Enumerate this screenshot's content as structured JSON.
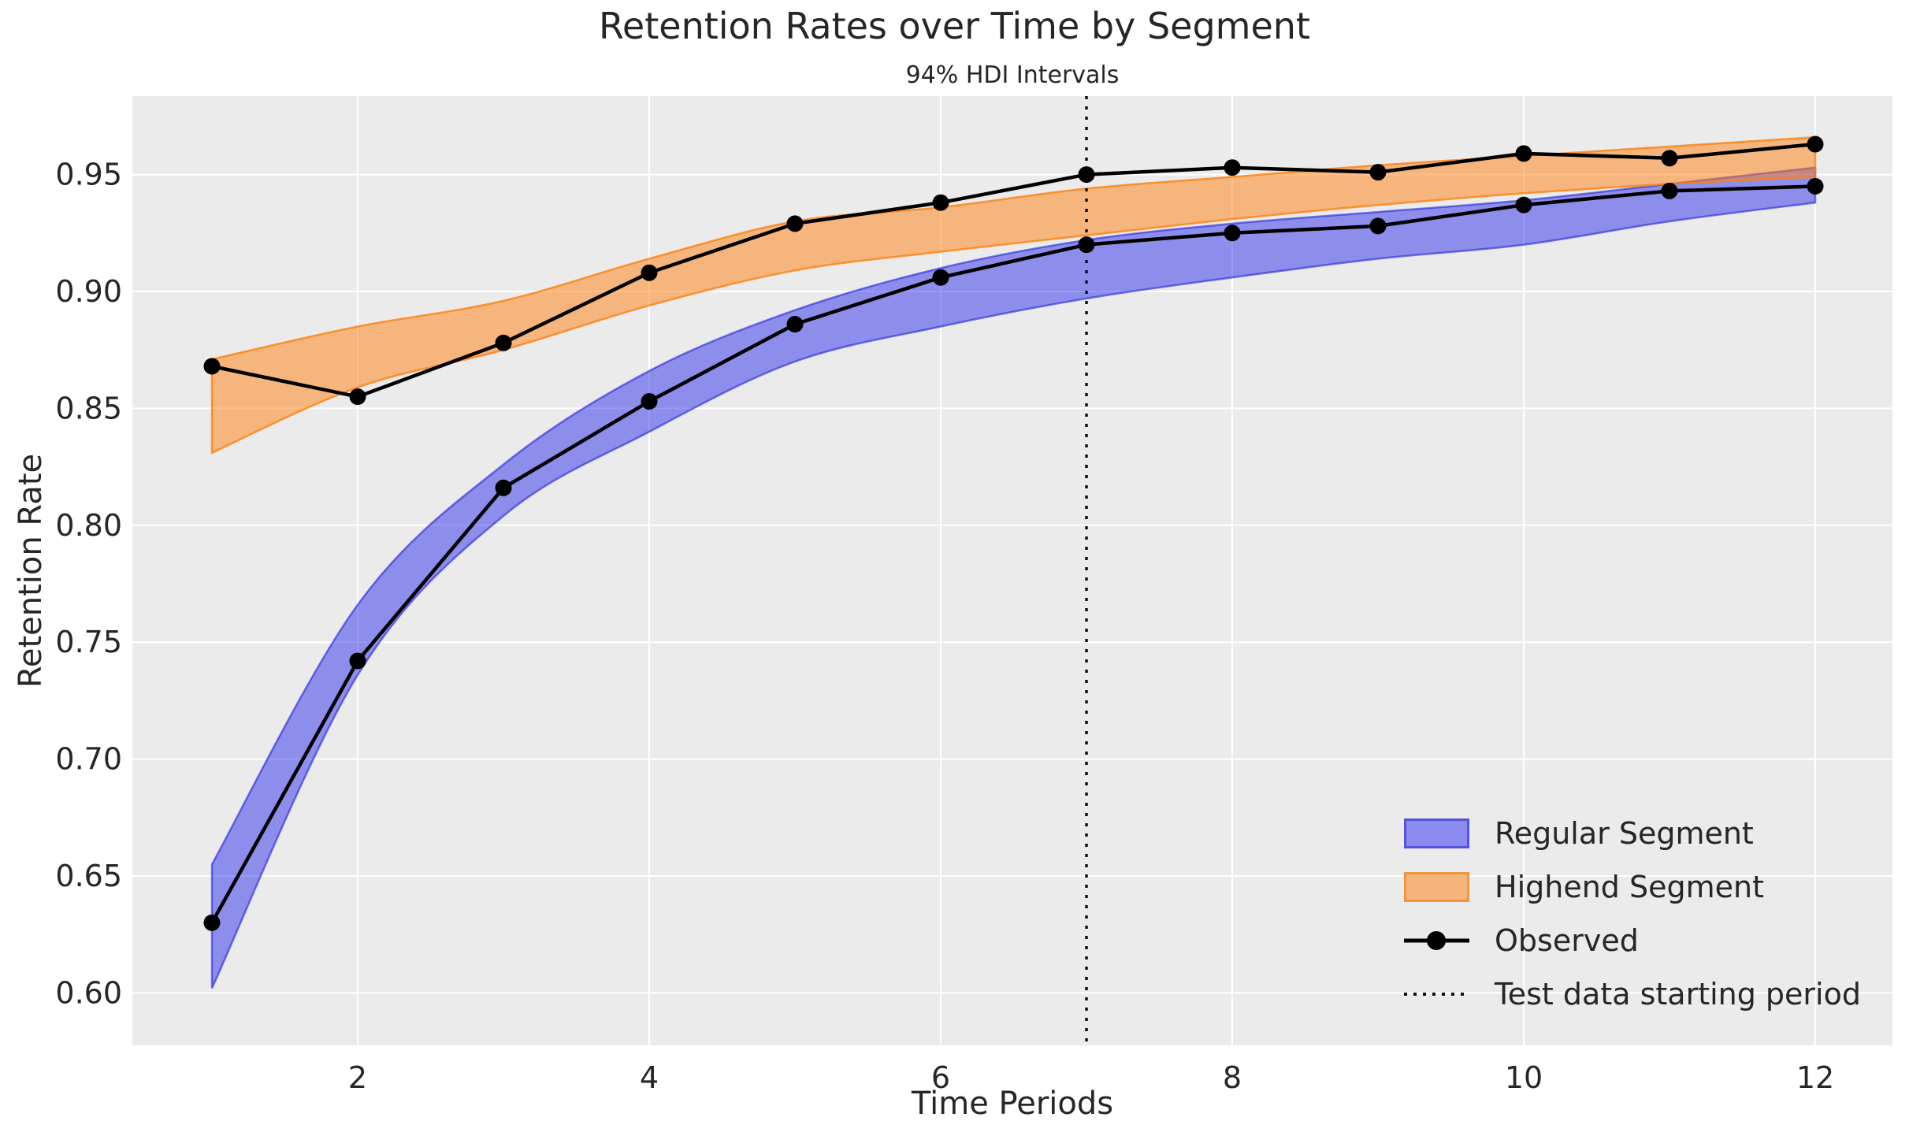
{
  "chart_data": {
    "type": "line",
    "title": "Retention Rates over Time by Segment",
    "subtitle": "94% HDI Intervals",
    "xlabel": "Time Periods",
    "ylabel": "Retention Rate",
    "grid": true,
    "legend_position": "lower right",
    "xlim": [
      0.46,
      12.54
    ],
    "ylim": [
      0.578,
      0.984
    ],
    "x": [
      1,
      2,
      3,
      4,
      5,
      6,
      7,
      8,
      9,
      10,
      11,
      12
    ],
    "x_tick_labels": [
      "2",
      "4",
      "6",
      "8",
      "10",
      "12"
    ],
    "x_tick_values": [
      2,
      4,
      6,
      8,
      10,
      12
    ],
    "y_tick_labels": [
      "0.60",
      "0.65",
      "0.70",
      "0.75",
      "0.80",
      "0.85",
      "0.90",
      "0.95"
    ],
    "y_tick_values": [
      0.6,
      0.65,
      0.7,
      0.75,
      0.8,
      0.85,
      0.9,
      0.95
    ],
    "series": [
      {
        "name": "Observed (Regular)",
        "type": "line-markers",
        "color": "#000000",
        "values": [
          0.63,
          0.742,
          0.816,
          0.853,
          0.886,
          0.906,
          0.92,
          0.925,
          0.928,
          0.937,
          0.943,
          0.945
        ]
      },
      {
        "name": "Observed (Highend)",
        "type": "line-markers",
        "color": "#000000",
        "values": [
          0.868,
          0.855,
          0.878,
          0.908,
          0.929,
          0.938,
          0.95,
          0.953,
          0.951,
          0.959,
          0.957,
          0.963
        ]
      }
    ],
    "bands": [
      {
        "name": "Regular Segment",
        "fill": "#0000ee",
        "fill_opacity": 0.4,
        "edge": "#2222dd",
        "edge_opacity": 0.6,
        "lower": [
          0.602,
          0.736,
          0.804,
          0.84,
          0.87,
          0.885,
          0.897,
          0.906,
          0.914,
          0.92,
          0.93,
          0.938
        ],
        "upper": [
          0.655,
          0.766,
          0.826,
          0.866,
          0.892,
          0.91,
          0.922,
          0.929,
          0.934,
          0.939,
          0.946,
          0.953
        ]
      },
      {
        "name": "Highend Segment",
        "fill": "#ff7f0e",
        "fill_opacity": 0.5,
        "edge": "#ff7f0e",
        "edge_opacity": 0.8,
        "lower": [
          0.831,
          0.859,
          0.875,
          0.894,
          0.909,
          0.917,
          0.924,
          0.931,
          0.937,
          0.942,
          0.946,
          0.949
        ],
        "upper": [
          0.871,
          0.885,
          0.896,
          0.914,
          0.93,
          0.936,
          0.944,
          0.949,
          0.954,
          0.958,
          0.962,
          0.966
        ]
      }
    ],
    "vline": {
      "x": 7,
      "style": "dotted",
      "color": "#111111",
      "label": "Test data starting period"
    },
    "legend": [
      {
        "label": "Regular Segment",
        "type": "patch",
        "fill": "#8a8aef",
        "border": "#5252dc"
      },
      {
        "label": "Highend Segment",
        "type": "patch",
        "fill": "#f5b47c",
        "border": "#f0953c"
      },
      {
        "label": "Observed",
        "type": "line-marker",
        "color": "#000000"
      },
      {
        "label": "Test data starting period",
        "type": "dotted-line",
        "color": "#000000"
      }
    ],
    "colors": {
      "figure_bg": "#ffffff",
      "axes_bg": "#ebebeb",
      "grid": "#ffffff",
      "text": "#262626"
    }
  }
}
